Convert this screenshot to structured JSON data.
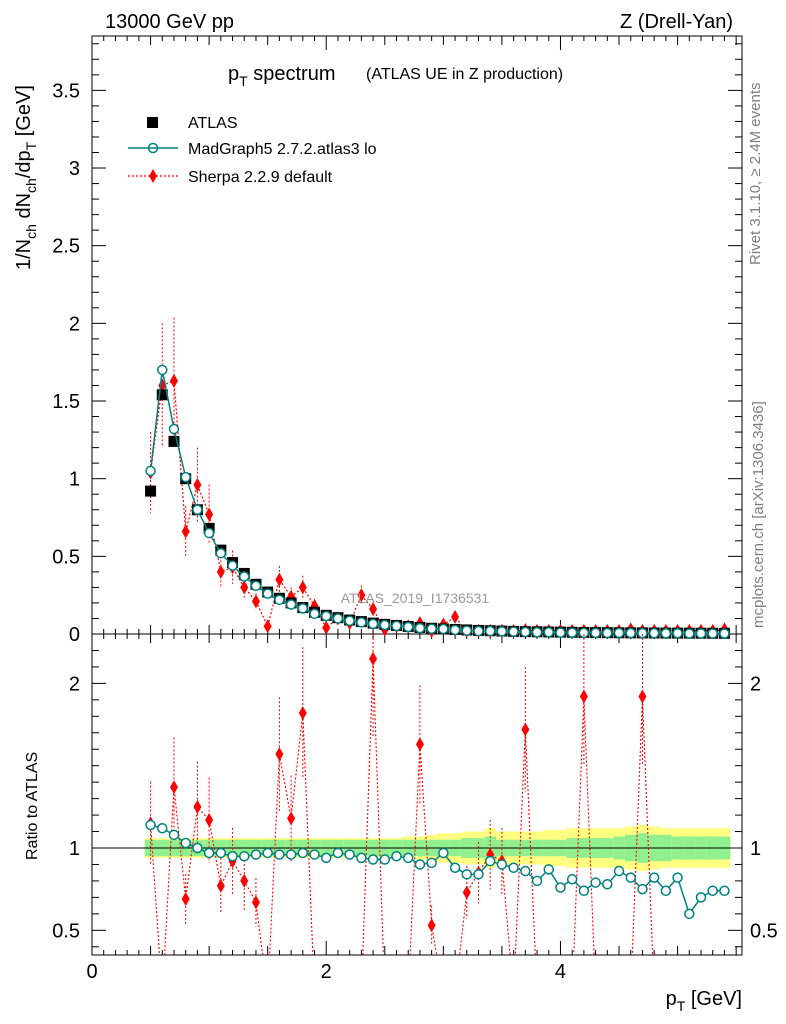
{
  "header": {
    "left": "13000 GeV pp",
    "right": "Z (Drell-Yan)"
  },
  "side": {
    "rivet": "Rivet 3.1.10, ≥ 2.4M events",
    "mcplots": "mcplots.cern.ch [arXiv:1306.3436]"
  },
  "chart_data": {
    "type": "scatter",
    "title": "p_T spectrum",
    "title_main": "p",
    "title_sub": "T",
    "title_rest": " spectrum",
    "subtitle": "(ATLAS UE in Z production)",
    "analysis_tag": "ATLAS_2019_I1736531",
    "xlabel": "p_T [GeV]",
    "xlabel_main": "p",
    "xlabel_sub": "T",
    "xlabel_rest": " [GeV]",
    "ylabel": "1/N_ch dN_ch/dp_T [GeV]",
    "ylabel_parts": [
      "1/N",
      "ch",
      " dN",
      "ch",
      "/dp",
      "T",
      " [GeV]"
    ],
    "ratio_ylabel": "Ratio to ATLAS",
    "xlim": [
      0,
      5.55
    ],
    "ylim_main": [
      0,
      3.85
    ],
    "ylim_ratio": [
      0.35,
      2.3
    ],
    "x_ticks": [
      "0",
      "2",
      "4"
    ],
    "y_ticks_main": [
      "0",
      "0.5",
      "1",
      "1.5",
      "2",
      "2.5",
      "3",
      "3.5"
    ],
    "y_ticks_ratio": [
      "0.5",
      "1",
      "2"
    ],
    "x": [
      0.5,
      0.6,
      0.7,
      0.8,
      0.9,
      1.0,
      1.1,
      1.2,
      1.3,
      1.4,
      1.5,
      1.6,
      1.7,
      1.8,
      1.9,
      2.0,
      2.1,
      2.2,
      2.3,
      2.4,
      2.5,
      2.6,
      2.7,
      2.8,
      2.9,
      3.0,
      3.1,
      3.2,
      3.3,
      3.4,
      3.5,
      3.6,
      3.7,
      3.8,
      3.9,
      4.0,
      4.1,
      4.2,
      4.3,
      4.4,
      4.5,
      4.6,
      4.7,
      4.8,
      4.9,
      5.0,
      5.1,
      5.2,
      5.3,
      5.4
    ],
    "series": [
      {
        "name": "ATLAS",
        "color": "#000000",
        "values": [
          0.92,
          1.54,
          1.24,
          1.0,
          0.8,
          0.68,
          0.54,
          0.46,
          0.39,
          0.32,
          0.27,
          0.23,
          0.2,
          0.17,
          0.14,
          0.12,
          0.105,
          0.09,
          0.08,
          0.07,
          0.062,
          0.055,
          0.048,
          0.042,
          0.037,
          0.033,
          0.029,
          0.026,
          0.023,
          0.021,
          0.019,
          0.017,
          0.015,
          0.014,
          0.013,
          0.012,
          0.011,
          0.01,
          0.009,
          0.0085,
          0.008,
          0.0075,
          0.007,
          0.0065,
          0.006,
          0.0057,
          0.0054,
          0.0051,
          0.0048,
          0.0045
        ]
      },
      {
        "name": "MadGraph5 2.7.2.atlas3 lo",
        "color": "#008080",
        "values": [
          1.05,
          1.7,
          1.32,
          1.01,
          0.8,
          0.65,
          0.52,
          0.44,
          0.37,
          0.31,
          0.26,
          0.22,
          0.19,
          0.165,
          0.13,
          0.115,
          0.1,
          0.085,
          0.075,
          0.065,
          0.058,
          0.052,
          0.045,
          0.038,
          0.034,
          0.032,
          0.026,
          0.022,
          0.019,
          0.019,
          0.017,
          0.015,
          0.013,
          0.011,
          0.011,
          0.009,
          0.009,
          0.0074,
          0.0072,
          0.0066,
          0.0069,
          0.0062,
          0.0055,
          0.0054,
          0.0045,
          0.0047,
          0.0033,
          0.0036,
          0.0036,
          0.0033
        ],
        "ratio": [
          1.14,
          1.12,
          1.08,
          1.03,
          1.0,
          0.97,
          0.97,
          0.95,
          0.95,
          0.96,
          0.97,
          0.96,
          0.96,
          0.97,
          0.96,
          0.94,
          0.97,
          0.96,
          0.94,
          0.93,
          0.93,
          0.95,
          0.94,
          0.9,
          0.91,
          0.97,
          0.88,
          0.84,
          0.84,
          0.92,
          0.9,
          0.88,
          0.86,
          0.8,
          0.87,
          0.76,
          0.81,
          0.74,
          0.79,
          0.78,
          0.86,
          0.82,
          0.75,
          0.82,
          0.74,
          0.82,
          0.6,
          0.7,
          0.74,
          0.74
        ]
      },
      {
        "name": "Sherpa 2.2.9 default",
        "color": "#ff0000",
        "values": [
          1.04,
          1.6,
          1.63,
          0.66,
          0.96,
          0.77,
          0.4,
          0.43,
          0.3,
          0.21,
          0.05,
          0.35,
          0.24,
          0.3,
          0.18,
          0.04,
          0.1,
          0.07,
          0.25,
          0.16,
          0.03,
          0.05,
          0.05,
          0.07,
          0.02,
          0.06,
          0.11,
          0.02,
          0.02,
          0.02,
          0.02,
          0.02,
          0.025,
          0.02,
          0.02,
          0.02,
          0.02,
          0.02,
          0.02,
          0.02,
          0.02,
          0.03,
          0.02,
          0.02,
          0.02,
          0.02,
          0.02,
          0.02,
          0.02,
          0.03
        ],
        "ratio": [
          1.15,
          null,
          1.37,
          0.69,
          1.25,
          1.17,
          0.77,
          0.92,
          0.8,
          0.67,
          null,
          1.57,
          1.18,
          1.82,
          null,
          null,
          null,
          null,
          null,
          2.15,
          null,
          null,
          null,
          1.63,
          0.53,
          null,
          null,
          0.73,
          0.85,
          0.96,
          0.92,
          null,
          1.72,
          null,
          null,
          null,
          null,
          1.92,
          null,
          null,
          null,
          null,
          1.92,
          null,
          null,
          null,
          null,
          null,
          null,
          null
        ]
      }
    ],
    "band_inner_halfwidth": [
      0.05,
      0.05,
      0.05,
      0.05,
      0.05,
      0.05,
      0.05,
      0.05,
      0.05,
      0.05,
      0.05,
      0.05,
      0.05,
      0.05,
      0.05,
      0.05,
      0.05,
      0.05,
      0.05,
      0.05,
      0.05,
      0.05,
      0.05,
      0.05,
      0.05,
      0.05,
      0.05,
      0.06,
      0.06,
      0.07,
      0.05,
      0.05,
      0.05,
      0.05,
      0.05,
      0.05,
      0.06,
      0.06,
      0.06,
      0.06,
      0.07,
      0.08,
      0.09,
      0.08,
      0.08,
      0.07,
      0.07,
      0.07,
      0.07,
      0.07
    ],
    "band_outer_halfwidth": [
      0.06,
      0.06,
      0.06,
      0.06,
      0.06,
      0.06,
      0.06,
      0.06,
      0.06,
      0.06,
      0.06,
      0.06,
      0.06,
      0.06,
      0.06,
      0.06,
      0.06,
      0.06,
      0.06,
      0.06,
      0.06,
      0.06,
      0.07,
      0.07,
      0.08,
      0.09,
      0.09,
      0.1,
      0.1,
      0.12,
      0.1,
      0.1,
      0.1,
      0.1,
      0.11,
      0.11,
      0.12,
      0.12,
      0.12,
      0.12,
      0.12,
      0.13,
      0.14,
      0.13,
      0.12,
      0.12,
      0.12,
      0.12,
      0.12,
      0.12
    ],
    "colors": {
      "band_inner": "#90f090",
      "band_outer": "#ffff80"
    }
  }
}
